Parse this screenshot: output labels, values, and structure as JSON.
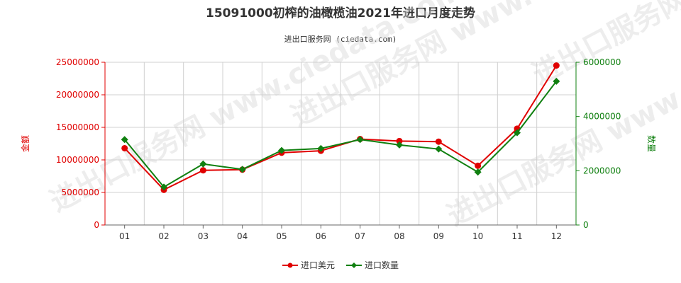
{
  "title": "15091000初榨的油橄榄油2021年进口月度走势",
  "subtitle": "进出口服务网 (ciedata.com)",
  "watermark": "进出口服务网 www.ciedata.com",
  "colors": {
    "left_axis": "#e00000",
    "right_axis": "#108010",
    "grid": "#d0d0d0",
    "axis": "#666666"
  },
  "chart_data": {
    "type": "line",
    "categories": [
      "01",
      "02",
      "03",
      "04",
      "05",
      "06",
      "07",
      "08",
      "09",
      "10",
      "11",
      "12"
    ],
    "ylabel_left": "金额",
    "ylabel_right": "数量",
    "ylim_left": [
      0,
      25000000
    ],
    "ylim_right": [
      0,
      6000000
    ],
    "yticks_left": [
      "25000000",
      "20000000",
      "15000000",
      "10000000",
      "5000000",
      "0"
    ],
    "yticks_right": [
      "6000000",
      "4000000",
      "2000000",
      "0"
    ],
    "grid": true,
    "legend_placement": "bottom-center",
    "series": [
      {
        "name": "进口美元",
        "axis": "left",
        "color": "#e00000",
        "marker": "circle",
        "values": [
          11800000,
          5400000,
          8400000,
          8500000,
          11100000,
          11400000,
          13200000,
          12900000,
          12800000,
          9100000,
          14800000,
          24500000
        ]
      },
      {
        "name": "进口数量",
        "axis": "right",
        "color": "#108010",
        "marker": "diamond",
        "values": [
          3150000,
          1400000,
          2250000,
          2050000,
          2750000,
          2820000,
          3150000,
          2950000,
          2800000,
          1950000,
          3400000,
          5300000
        ]
      }
    ]
  }
}
